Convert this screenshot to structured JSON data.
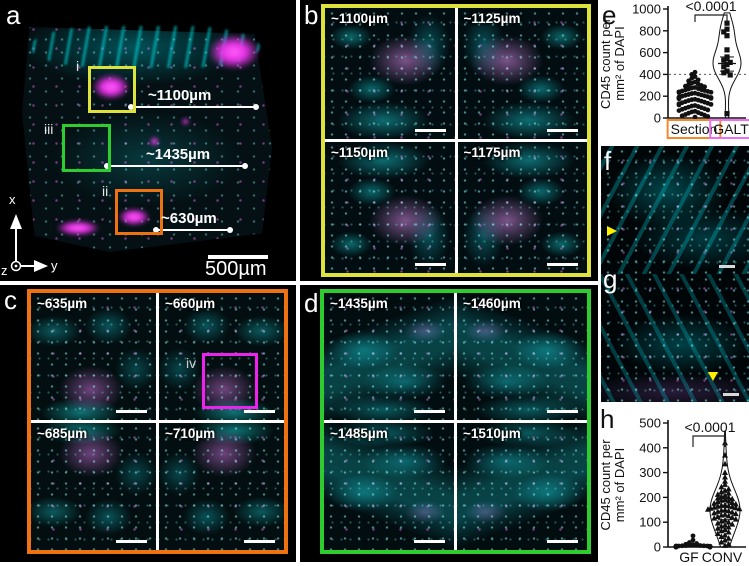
{
  "panels": {
    "a": {
      "label": "a",
      "scale_bar": "500µm",
      "axis_x": "x",
      "axis_y": "y",
      "axis_z": "z",
      "insets": [
        {
          "id": "i",
          "box_color": "#dde23c",
          "distance_label": "~1100µm"
        },
        {
          "id": "iii",
          "box_color": "#2fcc30",
          "distance_label": "~1435µm"
        },
        {
          "id": "ii",
          "box_color": "#ee7112",
          "distance_label": "~630µm"
        }
      ]
    },
    "b": {
      "label": "b",
      "border_color": "#dde23c",
      "tiles": [
        "~1100µm",
        "~1125µm",
        "~1150µm",
        "~1175µm"
      ]
    },
    "c": {
      "label": "c",
      "border_color": "#ee7112",
      "tiles": [
        "~635µm",
        "~660µm",
        "~685µm",
        "~710µm"
      ],
      "inset": {
        "id": "iv",
        "box_color": "#ee22ee"
      }
    },
    "d": {
      "label": "d",
      "border_color": "#2fcc30",
      "tiles": [
        "~1435µm",
        "~1460µm",
        "~1485µm",
        "~1510µm"
      ]
    },
    "e": {
      "label": "e"
    },
    "f": {
      "label": "f"
    },
    "g": {
      "label": "g"
    },
    "h": {
      "label": "h"
    }
  },
  "chart_data": [
    {
      "id": "e",
      "type": "scatter",
      "subtype": "violin-superplot",
      "ylabel": "CD45 count per mm² of DAPI",
      "ylabel_lines": [
        "CD45 count per",
        "mm² of DAPI"
      ],
      "ylim": [
        0,
        1000
      ],
      "yticks": [
        0,
        200,
        400,
        600,
        800,
        1000
      ],
      "significance": "<0.0001",
      "reference_line_y": 400,
      "grid": false,
      "legend_position": "none",
      "categories": [
        {
          "label": "Section",
          "label_box_color": "#f5872e",
          "marker": "circle",
          "values": [
            420,
            400,
            380,
            365,
            350,
            340,
            330,
            320,
            312,
            305,
            298,
            292,
            286,
            280,
            275,
            270,
            265,
            260,
            256,
            252,
            248,
            244,
            240,
            236,
            232,
            228,
            224,
            220,
            216,
            212,
            208,
            204,
            200,
            196,
            192,
            188,
            184,
            180,
            176,
            172,
            168,
            164,
            160,
            155,
            150,
            145,
            140,
            135,
            130,
            125,
            120,
            115,
            110,
            105,
            100,
            95,
            90,
            85,
            80,
            74,
            68,
            62,
            56,
            50,
            44,
            38,
            32,
            26,
            20,
            14,
            8
          ]
        },
        {
          "label": "GALT",
          "label_box_color": "#f06cf0",
          "marker": "square",
          "violin": true,
          "median": 500,
          "quartiles": [
            430,
            560
          ],
          "values": [
            870,
            815,
            790,
            755,
            625,
            560,
            545,
            530,
            510,
            490,
            470,
            430,
            415,
            395,
            40
          ]
        }
      ]
    },
    {
      "id": "h",
      "type": "scatter",
      "subtype": "violin-superplot",
      "ylabel": "CD45 count per mm² of DAPI",
      "ylabel_lines": [
        "CD45 count per",
        "mm² of DAPI"
      ],
      "ylim": [
        0,
        500
      ],
      "yticks": [
        0,
        100,
        200,
        300,
        400,
        500
      ],
      "significance": "<0.0001",
      "grid": false,
      "legend_position": "none",
      "categories": [
        {
          "label": "GF",
          "marker": "circle",
          "values": [
            45,
            28,
            18,
            14,
            11,
            9,
            8,
            7,
            6,
            6,
            5,
            5,
            4,
            4,
            4,
            3,
            3,
            3,
            2,
            2,
            2,
            2,
            1,
            1,
            1,
            1,
            1,
            0,
            0,
            0,
            0,
            0,
            0,
            0,
            0
          ]
        },
        {
          "label": "CONV",
          "marker": "triangle",
          "violin": true,
          "median": 160,
          "quartiles": [
            110,
            195
          ],
          "values": [
            420,
            370,
            335,
            300,
            282,
            265,
            252,
            242,
            234,
            228,
            222,
            217,
            212,
            208,
            204,
            200,
            197,
            194,
            191,
            188,
            185,
            182,
            179,
            176,
            173,
            170,
            168,
            166,
            164,
            162,
            160,
            158,
            156,
            154,
            152,
            150,
            148,
            146,
            143,
            140,
            137,
            134,
            131,
            128,
            125,
            122,
            119,
            116,
            112,
            108,
            104,
            100,
            96,
            92,
            88,
            84,
            80,
            75,
            70,
            65,
            60,
            54,
            48,
            42,
            35,
            28,
            20,
            12,
            6
          ]
        }
      ]
    }
  ]
}
